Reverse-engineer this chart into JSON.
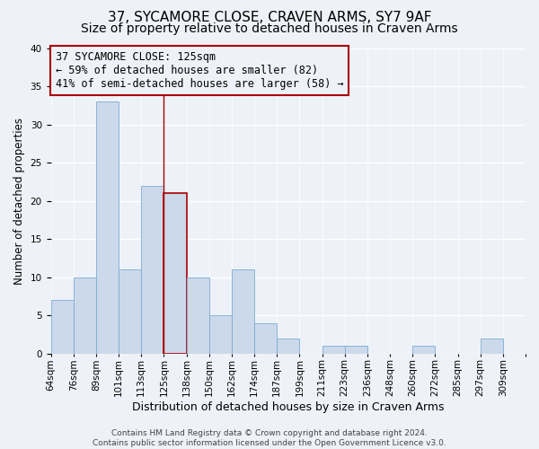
{
  "title": "37, SYCAMORE CLOSE, CRAVEN ARMS, SY7 9AF",
  "subtitle": "Size of property relative to detached houses in Craven Arms",
  "xlabel": "Distribution of detached houses by size in Craven Arms",
  "ylabel": "Number of detached properties",
  "bin_labels": [
    "64sqm",
    "76sqm",
    "89sqm",
    "101sqm",
    "113sqm",
    "125sqm",
    "138sqm",
    "150sqm",
    "162sqm",
    "174sqm",
    "187sqm",
    "199sqm",
    "211sqm",
    "223sqm",
    "236sqm",
    "248sqm",
    "260sqm",
    "272sqm",
    "285sqm",
    "297sqm",
    "309sqm"
  ],
  "bar_values": [
    7,
    10,
    33,
    11,
    22,
    21,
    10,
    5,
    11,
    4,
    2,
    0,
    1,
    1,
    0,
    0,
    1,
    0,
    0,
    2,
    0
  ],
  "bar_color": "#ccd9ea",
  "bar_edge_color": "#7aadd4",
  "highlight_bar_index": 5,
  "vline_color": "#aa0000",
  "annotation_text": "37 SYCAMORE CLOSE: 125sqm\n← 59% of detached houses are smaller (82)\n41% of semi-detached houses are larger (58) →",
  "annotation_box_edge_color": "#aa0000",
  "ylim": [
    0,
    40
  ],
  "yticks": [
    0,
    5,
    10,
    15,
    20,
    25,
    30,
    35,
    40
  ],
  "footer": "Contains HM Land Registry data © Crown copyright and database right 2024.\nContains public sector information licensed under the Open Government Licence v3.0.",
  "bg_color": "#eef2f8",
  "grid_color": "#ffffff",
  "title_fontsize": 11,
  "subtitle_fontsize": 10,
  "xlabel_fontsize": 9,
  "ylabel_fontsize": 8.5,
  "tick_fontsize": 7.5,
  "annotation_fontsize": 8.5,
  "footer_fontsize": 6.5
}
